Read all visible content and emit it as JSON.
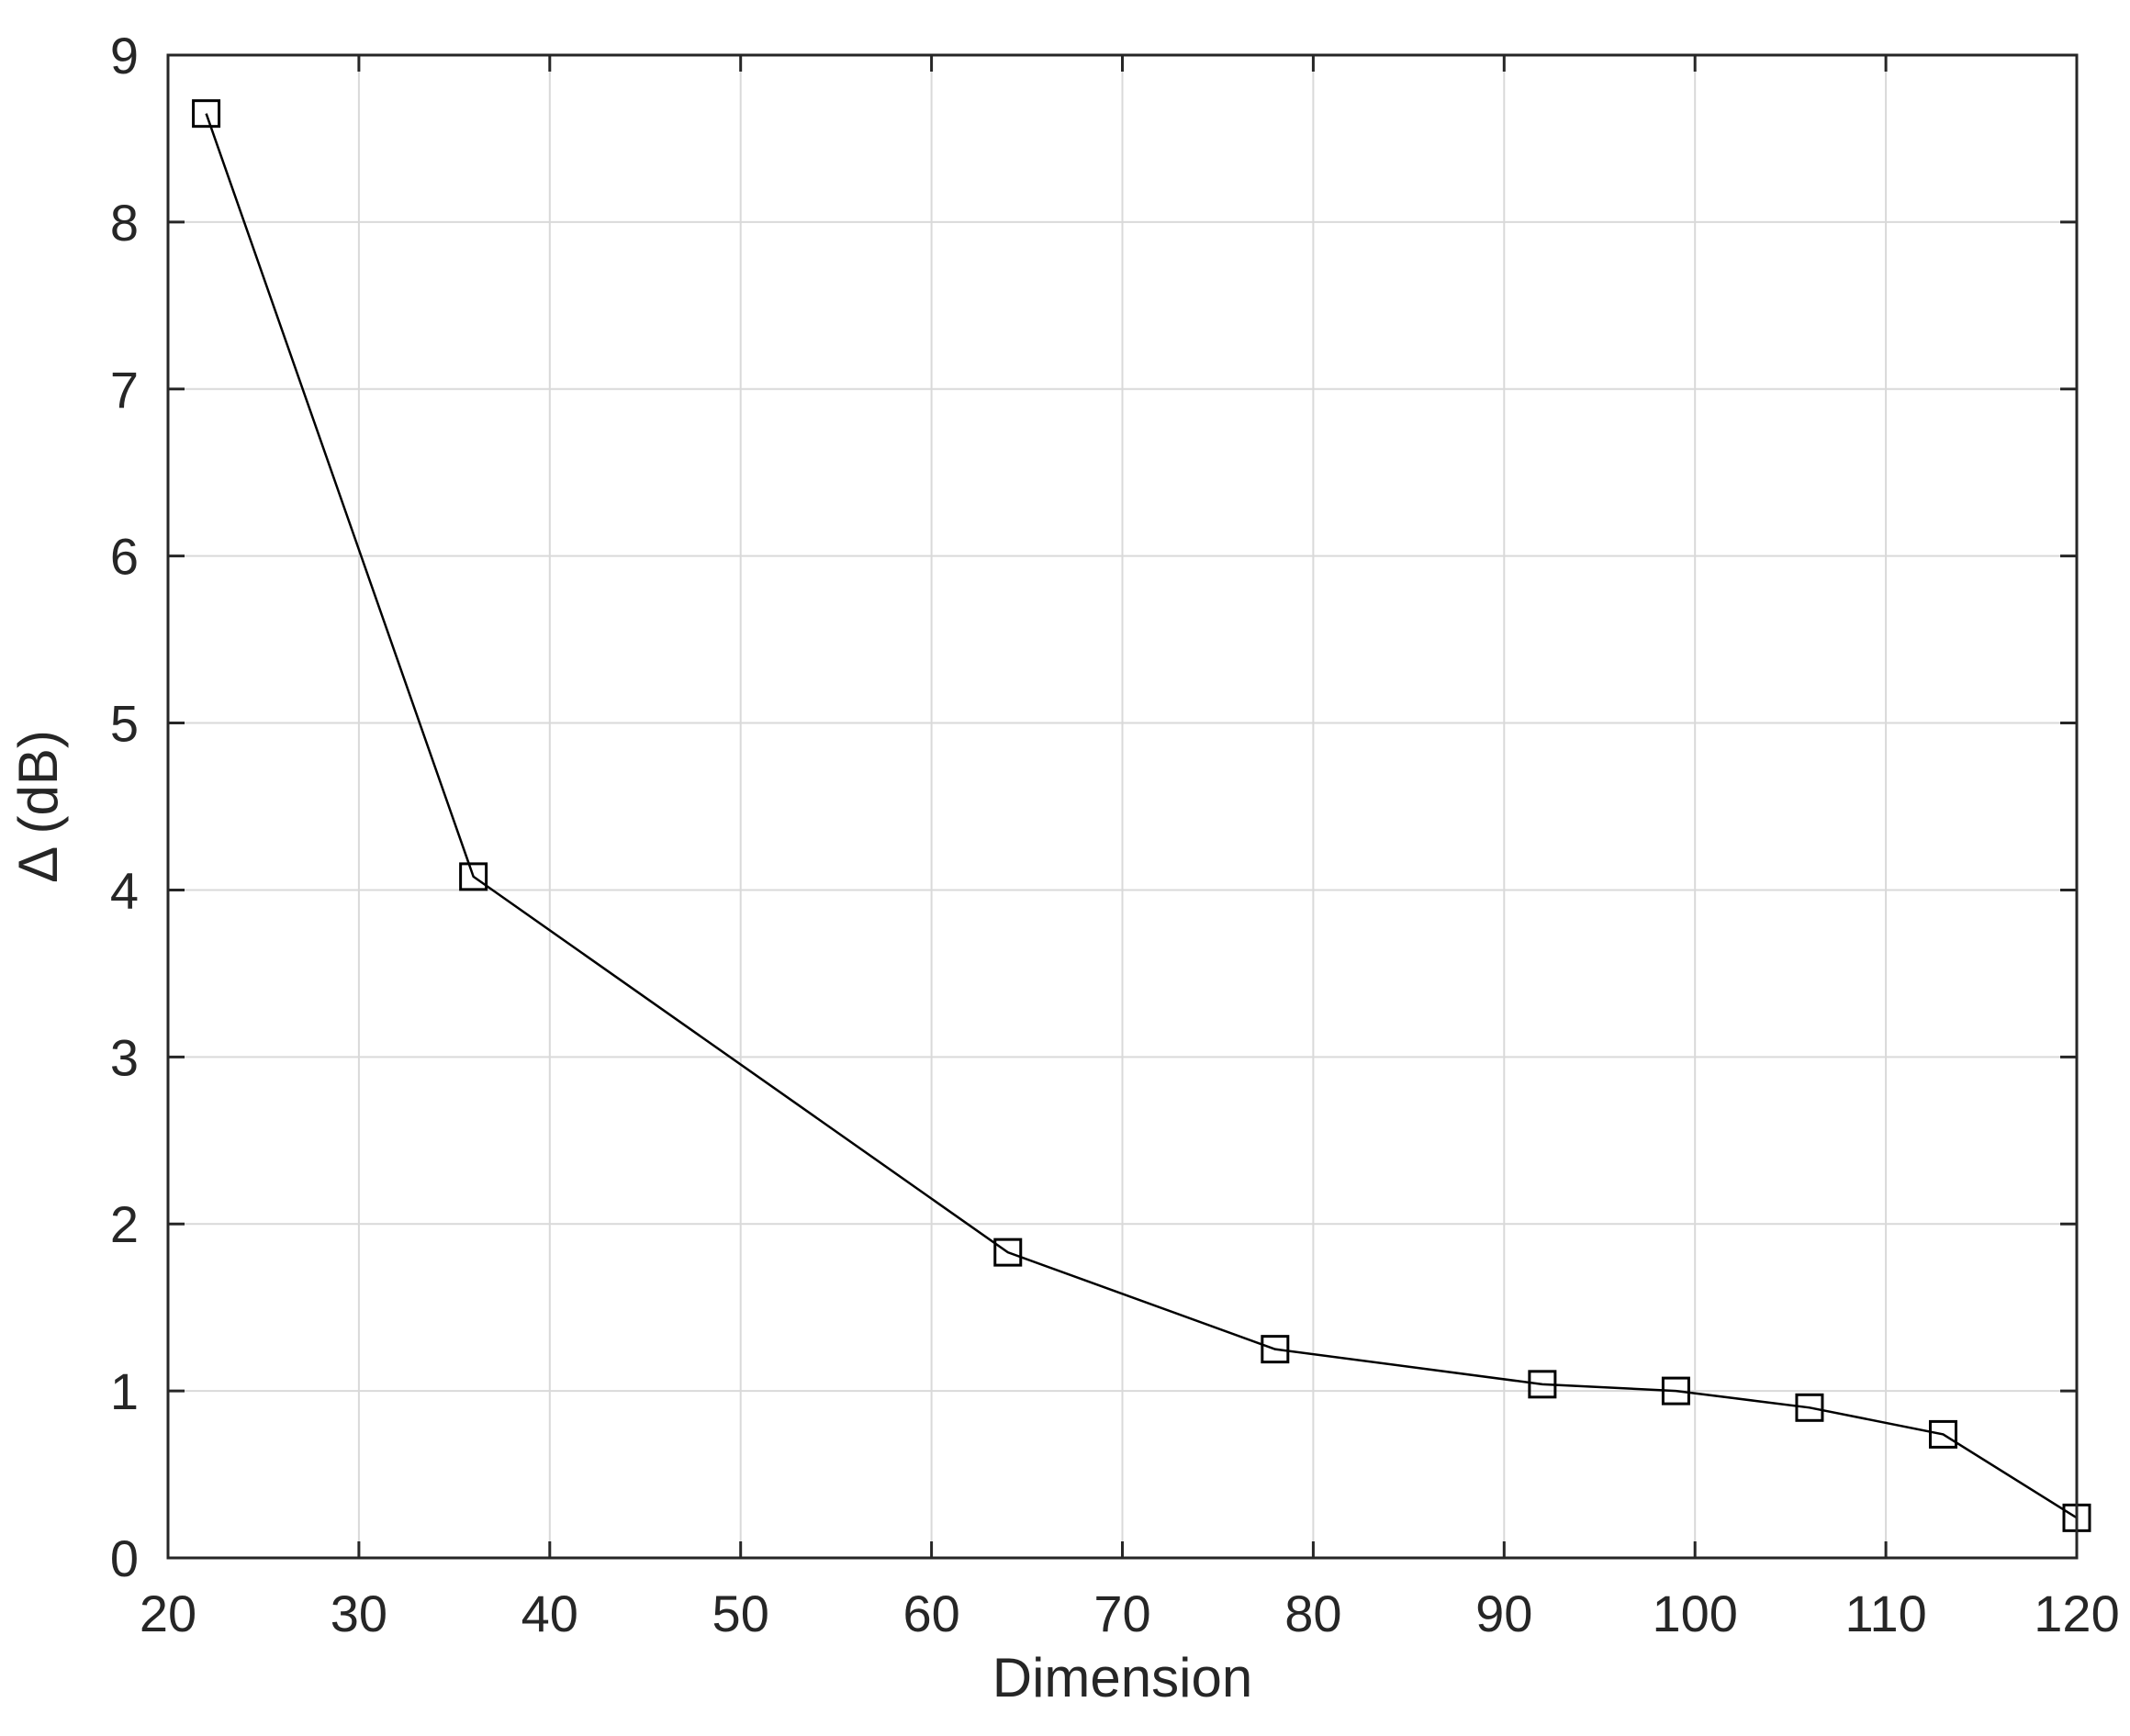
{
  "chart_data": {
    "type": "line",
    "title": "",
    "xlabel": "Dimension",
    "ylabel": "Δ (dB)",
    "xlim": [
      20,
      120
    ],
    "ylim": [
      0,
      9
    ],
    "xticks": [
      20,
      30,
      40,
      50,
      60,
      70,
      80,
      90,
      100,
      110,
      120
    ],
    "yticks": [
      0,
      1,
      2,
      3,
      4,
      5,
      6,
      7,
      8,
      9
    ],
    "grid": true,
    "legend": "none",
    "series": [
      {
        "marker": "square",
        "color": "#000000",
        "x": [
          22,
          36,
          64,
          78,
          92,
          99,
          106,
          113,
          120
        ],
        "y": [
          8.65,
          4.08,
          1.83,
          1.25,
          1.04,
          1.0,
          0.9,
          0.74,
          0.24
        ]
      }
    ]
  }
}
